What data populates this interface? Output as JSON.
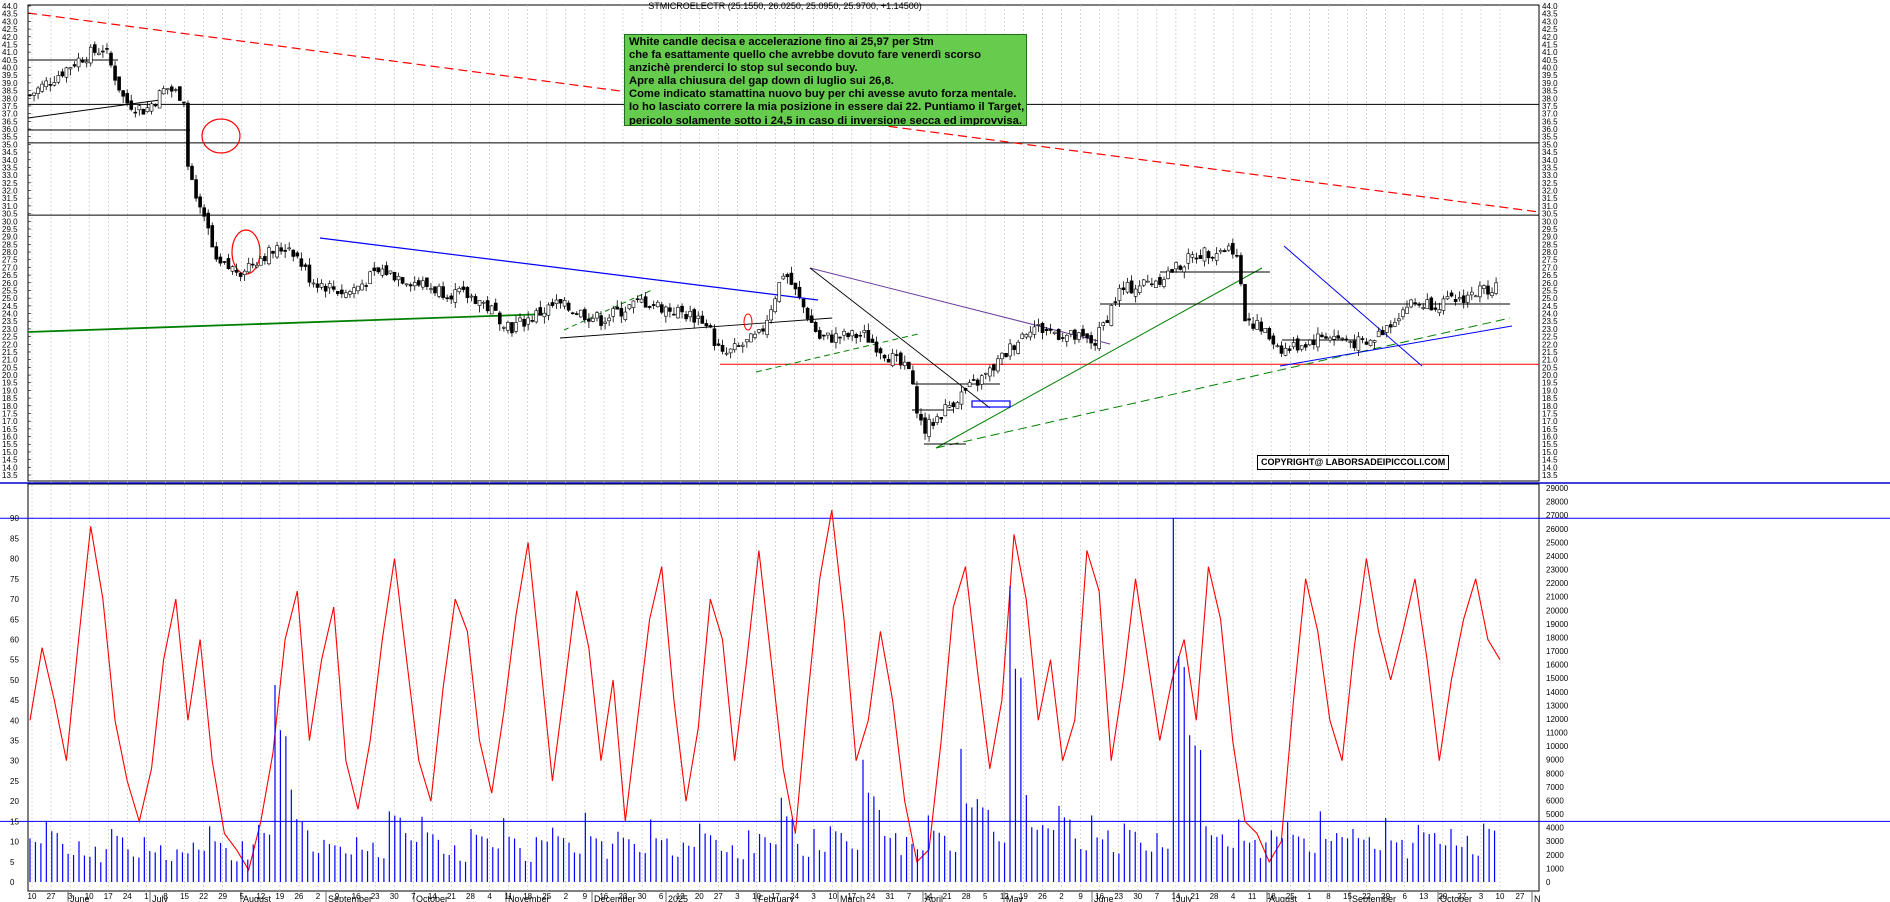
{
  "header": {
    "title": "STMICROELECTR (25.1550, 26.0250, 25.0950, 25.9700, +1.14500)"
  },
  "annotation": {
    "lines": [
      "White candle decisa e accelerazione fino ai 25,97 per Stm",
      "che fa esattamente quello che avrebbe dovuto fare venerdì scorso",
      "anzichè prenderci lo stop sul secondo buy.",
      "Apre alla chiusura del gap down di luglio sui 26,8.",
      "Come indicato stamattina nuovo buy per chi avesse avuto forza mentale.",
      "Io ho lasciato correre la mia posizione in essere dai 22. Puntiamo il Target,",
      "pericolo solamente sotto i 24,5 in caso di inversione secca ed improvvisa."
    ]
  },
  "copyright": "COPYRIGHT@ LABORSADEIPICCOLI.COM",
  "colors": {
    "price": "#000000",
    "oscillator": "#ff0000",
    "volume": "#0000ff",
    "downtrend_long": "#ff0000",
    "support_line": "#008000",
    "blue_trend": "#0000ff",
    "note_bg": "#66cc4d"
  },
  "chart_data": [
    {
      "type": "candlestick",
      "panel": "price",
      "ylim": [
        13.5,
        44.0
      ],
      "y_ticks": [
        "44.0",
        "43.5",
        "43.0",
        "42.5",
        "42.0",
        "41.5",
        "41.0",
        "40.5",
        "40.0",
        "39.5",
        "39.0",
        "38.5",
        "38.0",
        "37.5",
        "37.0",
        "36.5",
        "36.0",
        "35.5",
        "35.0",
        "34.5",
        "34.0",
        "33.5",
        "33.0",
        "32.5",
        "32.0",
        "31.5",
        "31.0",
        "30.5",
        "30.0",
        "29.5",
        "29.0",
        "28.5",
        "28.0",
        "27.5",
        "27.0",
        "26.5",
        "26.0",
        "25.5",
        "25.0",
        "24.5",
        "24.0",
        "23.5",
        "23.0",
        "22.5",
        "22.0",
        "21.5",
        "21.0",
        "20.5",
        "20.0",
        "19.5",
        "19.0",
        "18.5",
        "18.0",
        "17.5",
        "17.0",
        "16.5",
        "16.0",
        "15.5",
        "15.0",
        "14.5",
        "14.0",
        "13.5"
      ],
      "x_day_ticks": [
        "10",
        "27",
        "3",
        "10",
        "17",
        "24",
        "1",
        "8",
        "15",
        "22",
        "29",
        "5",
        "12",
        "19",
        "26",
        "2",
        "9",
        "16",
        "23",
        "30",
        "7",
        "14",
        "21",
        "28",
        "4",
        "11",
        "18",
        "25",
        "2",
        "9",
        "16",
        "23",
        "30",
        "6",
        "13",
        "20",
        "27",
        "3",
        "10",
        "17",
        "24",
        "3",
        "10",
        "17",
        "24",
        "31",
        "7",
        "14",
        "21",
        "28",
        "5",
        "12",
        "19",
        "26",
        "2",
        "9",
        "16",
        "23",
        "30",
        "7",
        "14",
        "21",
        "28",
        "4",
        "11",
        "18",
        "25",
        "1",
        "8",
        "15",
        "22",
        "29",
        "6",
        "13",
        "20",
        "27",
        "3",
        "10"
      ],
      "x_month_labels": [
        "June",
        "July",
        "August",
        "September",
        "October",
        "November",
        "December",
        "2025",
        "February",
        "March",
        "April",
        "May",
        "June",
        "July",
        "August",
        "September",
        "October",
        "N"
      ],
      "horizontal_levels": [
        37.6,
        35.1,
        30.4,
        20.7
      ],
      "last_close": 25.97,
      "close_path": [
        {
          "date": "2024-06-10",
          "close": 38.2
        },
        {
          "date": "2024-06-27",
          "close": 40.6
        },
        {
          "date": "2024-07-05",
          "close": 41.3
        },
        {
          "date": "2024-07-12",
          "close": 37.8
        },
        {
          "date": "2024-07-19",
          "close": 37.2
        },
        {
          "date": "2024-07-26",
          "close": 38.7
        },
        {
          "date": "2024-08-01",
          "close": 38.1
        },
        {
          "date": "2024-08-02",
          "close": 34.0
        },
        {
          "date": "2024-08-05",
          "close": 31.2
        },
        {
          "date": "2024-08-09",
          "close": 29.5
        },
        {
          "date": "2024-08-12",
          "close": 27.1
        },
        {
          "date": "2024-08-20",
          "close": 26.8
        },
        {
          "date": "2024-08-28",
          "close": 27.8
        },
        {
          "date": "2024-09-06",
          "close": 28.4
        },
        {
          "date": "2024-09-13",
          "close": 26.2
        },
        {
          "date": "2024-09-25",
          "close": 25.3
        },
        {
          "date": "2024-10-07",
          "close": 26.8
        },
        {
          "date": "2024-10-25",
          "close": 25.6
        },
        {
          "date": "2024-11-08",
          "close": 25.0
        },
        {
          "date": "2024-11-20",
          "close": 23.1
        },
        {
          "date": "2024-12-05",
          "close": 24.6
        },
        {
          "date": "2024-12-20",
          "close": 23.6
        },
        {
          "date": "2025-01-03",
          "close": 24.8
        },
        {
          "date": "2025-01-24",
          "close": 23.6
        },
        {
          "date": "2025-01-30",
          "close": 21.2
        },
        {
          "date": "2025-02-12",
          "close": 22.6
        },
        {
          "date": "2025-02-20",
          "close": 26.8
        },
        {
          "date": "2025-03-04",
          "close": 22.4
        },
        {
          "date": "2025-03-19",
          "close": 22.6
        },
        {
          "date": "2025-04-03",
          "close": 20.2
        },
        {
          "date": "2025-04-08",
          "close": 16.3
        },
        {
          "date": "2025-04-18",
          "close": 18.3
        },
        {
          "date": "2025-04-30",
          "close": 20.1
        },
        {
          "date": "2025-05-14",
          "close": 23.2
        },
        {
          "date": "2025-06-05",
          "close": 22.1
        },
        {
          "date": "2025-06-13",
          "close": 25.4
        },
        {
          "date": "2025-06-27",
          "close": 26.3
        },
        {
          "date": "2025-07-10",
          "close": 27.9
        },
        {
          "date": "2025-07-22",
          "close": 28.3
        },
        {
          "date": "2025-07-24",
          "close": 27.0
        },
        {
          "date": "2025-07-25",
          "close": 24.0
        },
        {
          "date": "2025-08-08",
          "close": 21.6
        },
        {
          "date": "2025-08-22",
          "close": 22.6
        },
        {
          "date": "2025-09-05",
          "close": 21.9
        },
        {
          "date": "2025-09-19",
          "close": 24.6
        },
        {
          "date": "2025-10-03",
          "close": 24.7
        },
        {
          "date": "2025-10-20",
          "close": 25.97
        }
      ]
    },
    {
      "type": "line",
      "panel": "oscillator",
      "ylim": [
        0,
        95
      ],
      "y_ticks": [
        "90",
        "85",
        "80",
        "75",
        "70",
        "65",
        "60",
        "55",
        "50",
        "45",
        "40",
        "35",
        "30",
        "25",
        "20",
        "15",
        "10",
        "5",
        "0"
      ],
      "reference_levels": [
        90,
        15
      ],
      "series": [
        {
          "values": [
            40,
            58,
            45,
            30,
            60,
            88,
            70,
            40,
            25,
            15,
            28,
            55,
            70,
            40,
            60,
            30,
            12,
            8,
            3,
            15,
            32,
            60,
            72,
            35,
            55,
            68,
            30,
            18,
            35,
            60,
            80,
            55,
            30,
            20,
            48,
            70,
            62,
            35,
            22,
            42,
            66,
            84,
            55,
            25,
            48,
            72,
            58,
            30,
            50,
            15,
            40,
            65,
            78,
            45,
            20,
            38,
            70,
            60,
            30,
            55,
            82,
            55,
            28,
            12,
            45,
            75,
            92,
            65,
            30,
            40,
            62,
            45,
            20,
            5,
            8,
            35,
            68,
            78,
            52,
            28,
            45,
            86,
            70,
            40,
            55,
            30,
            40,
            82,
            72,
            30,
            50,
            75,
            55,
            35,
            50,
            60,
            40,
            78,
            65,
            35,
            15,
            12,
            5,
            10,
            45,
            75,
            62,
            40,
            30,
            58,
            80,
            62,
            50,
            62,
            75,
            55,
            30,
            50,
            65,
            75,
            60,
            55
          ]
        }
      ]
    },
    {
      "type": "bar",
      "panel": "volume",
      "ylim": [
        0,
        29000
      ],
      "y_ticks": [
        "29000",
        "28000",
        "27000",
        "26000",
        "25000",
        "24000",
        "23000",
        "22000",
        "21000",
        "20000",
        "19000",
        "18000",
        "17000",
        "16000",
        "15000",
        "14000",
        "13000",
        "12000",
        "11000",
        "10000",
        "9000",
        "8000",
        "7000",
        "6000",
        "5000",
        "4000",
        "3000",
        "2000",
        "1000",
        "0"
      ],
      "values": [
        3200,
        4500,
        2800,
        3000,
        2600,
        3900,
        2400,
        3300,
        2700,
        2400,
        2900,
        4100,
        2500,
        3000,
        4200,
        14500,
        6800,
        3800,
        3100,
        2600,
        3300,
        2900,
        5200,
        3600,
        4800,
        3100,
        2700,
        3900,
        3200,
        4700,
        2500,
        3300,
        4000,
        2900,
        5100,
        3000,
        3700,
        2800,
        4600,
        3200,
        2900,
        4300,
        3100,
        2700,
        3800,
        3300,
        6200,
        2800,
        3900,
        4100,
        3000,
        9000,
        5300,
        3600,
        2800,
        4900,
        3400,
        9800,
        6100,
        3700,
        21800,
        6400,
        4200,
        5600,
        3200,
        4900,
        3800,
        4300,
        2900,
        3600,
        26800,
        10800,
        4100,
        3500,
        4600,
        3100,
        3800,
        4400,
        3200,
        5200,
        3600,
        3900,
        3300,
        4700,
        3100,
        4200,
        3600,
        3900,
        3400,
        4300
      ]
    }
  ]
}
